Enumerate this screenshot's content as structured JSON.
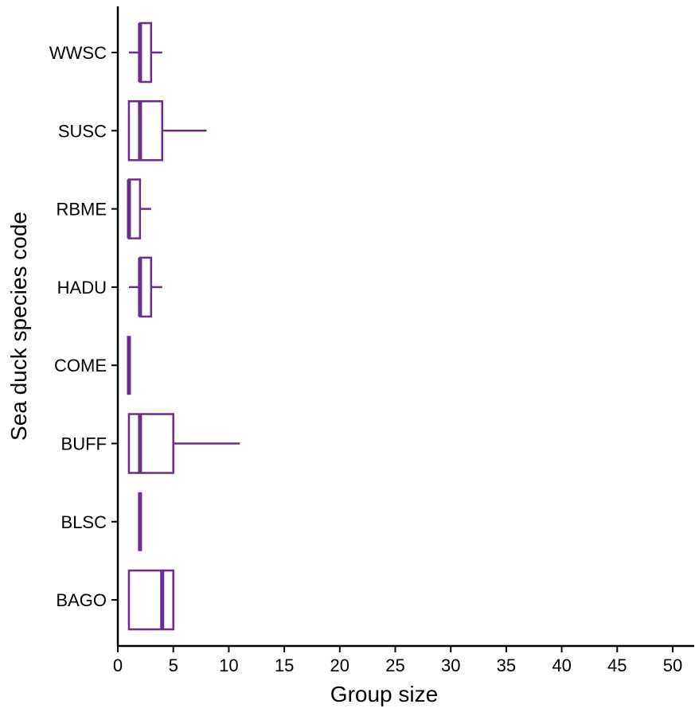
{
  "chart_data": {
    "type": "boxplot",
    "orientation": "horizontal",
    "xlabel": "Group size",
    "ylabel": "Sea duck species code",
    "xlim": [
      0,
      52
    ],
    "xticks": [
      0,
      5,
      10,
      15,
      20,
      25,
      30,
      35,
      40,
      45,
      50
    ],
    "grid": false,
    "legend": "none",
    "box_color": "#6a2c91",
    "categories": [
      "BAGO",
      "BLSC",
      "BUFF",
      "COME",
      "HADU",
      "RBME",
      "SUSC",
      "WWSC"
    ],
    "boxes": [
      {
        "category": "BAGO",
        "min": 1,
        "q1": 1,
        "median": 4,
        "q3": 5,
        "max": 5
      },
      {
        "category": "BLSC",
        "min": 2,
        "q1": 2,
        "median": 2,
        "q3": 2,
        "max": 2
      },
      {
        "category": "BUFF",
        "min": 1,
        "q1": 1,
        "median": 2,
        "q3": 5,
        "max": 11
      },
      {
        "category": "COME",
        "min": 1,
        "q1": 1,
        "median": 1,
        "q3": 1,
        "max": 1
      },
      {
        "category": "HADU",
        "min": 1,
        "q1": 2,
        "median": 2,
        "q3": 3,
        "max": 4
      },
      {
        "category": "RBME",
        "min": 1,
        "q1": 1,
        "median": 1,
        "q3": 2,
        "max": 3
      },
      {
        "category": "SUSC",
        "min": 1,
        "q1": 1,
        "median": 2,
        "q3": 4,
        "max": 8
      },
      {
        "category": "WWSC",
        "min": 1,
        "q1": 2,
        "median": 2,
        "q3": 3,
        "max": 4
      }
    ]
  }
}
